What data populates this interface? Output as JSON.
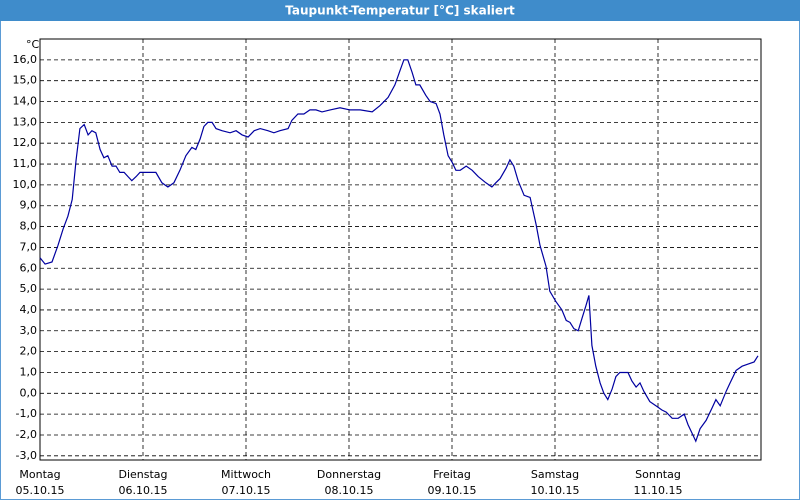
{
  "chart_data": {
    "type": "line",
    "title": "Taupunkt-Temperatur [°C] skaliert",
    "y_label": "°C",
    "xlim": [
      0,
      168
    ],
    "ylim": [
      -3.2,
      17
    ],
    "xticks": [
      {
        "value": 0,
        "label": "Montag",
        "date": "05.10.15"
      },
      {
        "value": 24,
        "label": "Dienstag",
        "date": "06.10.15"
      },
      {
        "value": 48,
        "label": "Mittwoch",
        "date": "07.10.15"
      },
      {
        "value": 72,
        "label": "Donnerstag",
        "date": "08.10.15"
      },
      {
        "value": 96,
        "label": "Freitag",
        "date": "09.10.15"
      },
      {
        "value": 120,
        "label": "Samstag",
        "date": "10.10.15"
      },
      {
        "value": 144,
        "label": "Sonntag",
        "date": "11.10.15"
      }
    ],
    "yticks": [
      {
        "value": 16,
        "label": "16,0"
      },
      {
        "value": 15,
        "label": "15,0"
      },
      {
        "value": 14,
        "label": "14,0"
      },
      {
        "value": 13,
        "label": "13,0"
      },
      {
        "value": 12,
        "label": "12,0"
      },
      {
        "value": 11,
        "label": "11,0"
      },
      {
        "value": 10,
        "label": "10,0"
      },
      {
        "value": 9,
        "label": "9,0"
      },
      {
        "value": 8,
        "label": "8,0"
      },
      {
        "value": 7,
        "label": "7,0"
      },
      {
        "value": 6,
        "label": "6,0"
      },
      {
        "value": 5,
        "label": "5,0"
      },
      {
        "value": 4,
        "label": "4,0"
      },
      {
        "value": 3,
        "label": "3,0"
      },
      {
        "value": 2,
        "label": "2,0"
      },
      {
        "value": 1,
        "label": "1,0"
      },
      {
        "value": 0,
        "label": "0,0"
      },
      {
        "value": -1,
        "label": "-1,0"
      },
      {
        "value": -2,
        "label": "-2,0"
      },
      {
        "value": -3,
        "label": "-3,0"
      }
    ],
    "grid": true,
    "color": "#0000a0",
    "x": [
      0,
      1.2,
      2.8,
      4.2,
      5.4,
      6.5,
      7.5,
      8.4,
      9.3,
      10.3,
      11.2,
      12.1,
      13.0,
      14.0,
      14.9,
      15.8,
      16.8,
      17.7,
      18.6,
      19.6,
      20.5,
      21.4,
      22.4,
      23.3,
      25.2,
      27.0,
      28.4,
      29.8,
      31.2,
      32.6,
      34.0,
      35.4,
      36.3,
      37.3,
      38.2,
      39.1,
      40.1,
      41.0,
      42.4,
      44.3,
      45.7,
      47.1,
      48.5,
      49.9,
      51.3,
      53.1,
      54.5,
      55.9,
      57.8,
      58.7,
      60.1,
      61.5,
      62.9,
      64.3,
      65.7,
      67.6,
      69.9,
      72.2,
      74.6,
      77.4,
      79.2,
      81.1,
      82.7,
      83.9,
      84.8,
      85.7,
      86.7,
      87.6,
      88.5,
      89.9,
      90.9,
      92.3,
      93.2,
      94.1,
      95.1,
      96.0,
      96.9,
      97.9,
      99.3,
      100.7,
      102.1,
      103.9,
      105.3,
      106.2,
      107.2,
      108.6,
      109.5,
      110.4,
      111.4,
      112.8,
      114.2,
      115.6,
      116.5,
      117.9,
      118.8,
      120.2,
      121.6,
      122.6,
      123.5,
      124.4,
      125.4,
      126.3,
      127.2,
      127.9,
      128.6,
      129.5,
      130.5,
      131.4,
      132.3,
      133.3,
      134.2,
      135.1,
      137.0,
      137.9,
      138.9,
      139.8,
      140.7,
      142.1,
      143.5,
      144.9,
      145.9,
      147.3,
      148.7,
      150.1,
      151.0,
      151.9,
      152.8,
      153.8,
      155.2,
      156.6,
      157.5,
      158.5,
      159.9,
      160.8,
      162.2,
      163.6,
      165.0,
      166.4,
      167.3
    ],
    "values": [
      6.5,
      6.2,
      6.3,
      7.1,
      7.9,
      8.5,
      9.3,
      11.2,
      12.7,
      12.9,
      12.4,
      12.6,
      12.5,
      11.7,
      11.3,
      11.4,
      10.9,
      10.9,
      10.6,
      10.6,
      10.4,
      10.2,
      10.4,
      10.6,
      10.6,
      10.6,
      10.1,
      9.9,
      10.1,
      10.7,
      11.4,
      11.8,
      11.7,
      12.2,
      12.8,
      13.0,
      13.0,
      12.7,
      12.6,
      12.5,
      12.6,
      12.4,
      12.3,
      12.6,
      12.7,
      12.6,
      12.5,
      12.6,
      12.7,
      13.1,
      13.4,
      13.4,
      13.6,
      13.6,
      13.5,
      13.6,
      13.7,
      13.6,
      13.6,
      13.5,
      13.8,
      14.2,
      14.8,
      15.5,
      16.0,
      16.0,
      15.4,
      14.8,
      14.8,
      14.3,
      14.0,
      13.9,
      13.4,
      12.4,
      11.4,
      11.1,
      10.7,
      10.7,
      10.9,
      10.7,
      10.4,
      10.1,
      9.9,
      10.1,
      10.3,
      10.8,
      11.2,
      10.9,
      10.2,
      9.5,
      9.4,
      8.1,
      7.1,
      6.1,
      4.9,
      4.4,
      4.0,
      3.5,
      3.4,
      3.1,
      3.0,
      3.6,
      4.2,
      4.7,
      2.3,
      1.3,
      0.5,
      0.0,
      -0.3,
      0.2,
      0.8,
      1.0,
      1.0,
      0.6,
      0.3,
      0.5,
      0.1,
      -0.4,
      -0.6,
      -0.8,
      -0.9,
      -1.2,
      -1.2,
      -1.0,
      -1.5,
      -1.9,
      -2.3,
      -1.7,
      -1.3,
      -0.7,
      -0.3,
      -0.6,
      0.1,
      0.5,
      1.1,
      1.3,
      1.4,
      1.5,
      1.8
    ]
  }
}
